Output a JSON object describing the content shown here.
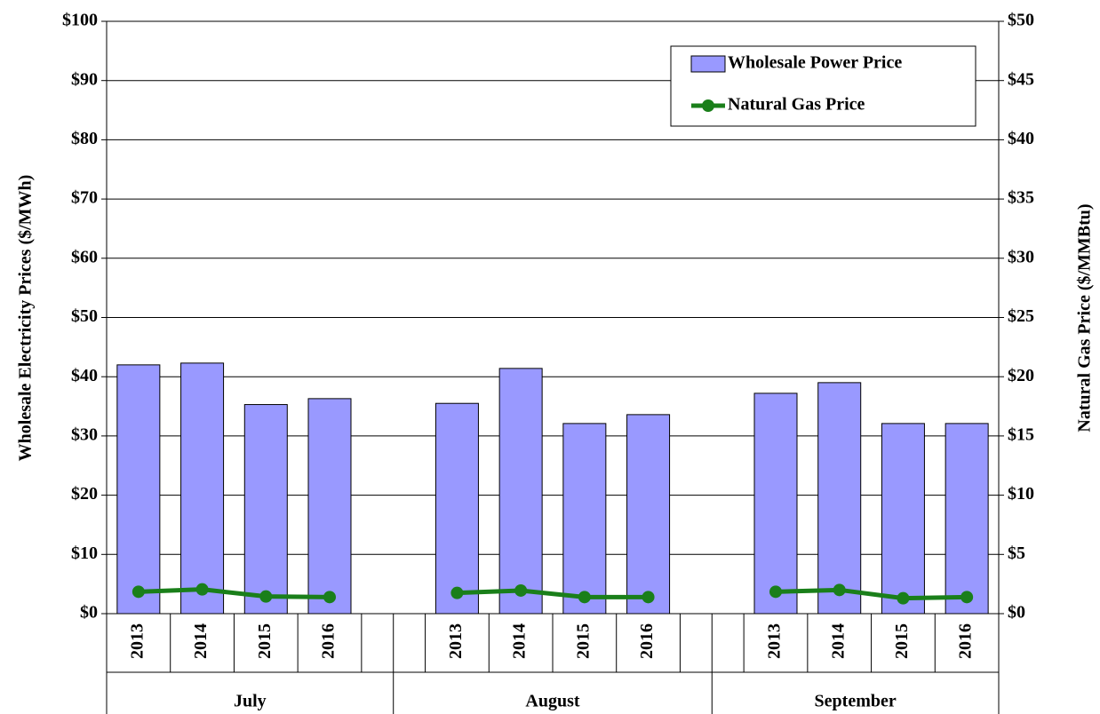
{
  "chart_data": {
    "type": "bar",
    "y_label": "Wholesale Electricity Prices ($/MWh)",
    "y2_label": "Natural Gas Price ($/MMBtu)",
    "categories": [
      "2013",
      "2014",
      "2015",
      "2016",
      null,
      "2013",
      "2014",
      "2015",
      "2016",
      null,
      "2013",
      "2014",
      "2015",
      "2016"
    ],
    "groups": [
      "July",
      "August",
      "September"
    ],
    "series": [
      {
        "name": "Wholesale Power Price",
        "type": "bar",
        "color": "#9999ff",
        "values": [
          42.0,
          42.3,
          35.3,
          36.3,
          null,
          35.5,
          41.4,
          32.1,
          33.6,
          null,
          37.2,
          39.0,
          32.1,
          32.1
        ]
      },
      {
        "name": "Natural Gas Price",
        "type": "line",
        "color": "#1a7f1a",
        "values": [
          3.7,
          4.1,
          2.9,
          2.8,
          null,
          3.5,
          3.9,
          2.8,
          2.8,
          null,
          3.7,
          4.0,
          2.6,
          2.8
        ]
      }
    ],
    "ylim": [
      0,
      100
    ],
    "yticks": [
      {
        "value": 0,
        "label": "$0"
      },
      {
        "value": 10,
        "label": "$10"
      },
      {
        "value": 20,
        "label": "$20"
      },
      {
        "value": 30,
        "label": "$30"
      },
      {
        "value": 40,
        "label": "$40"
      },
      {
        "value": 50,
        "label": "$50"
      },
      {
        "value": 60,
        "label": "$60"
      },
      {
        "value": 70,
        "label": "$70"
      },
      {
        "value": 80,
        "label": "$80"
      },
      {
        "value": 90,
        "label": "$90"
      },
      {
        "value": 100,
        "label": "$100"
      }
    ],
    "y2lim": [
      0,
      50
    ],
    "y2ticks": [
      {
        "value": 0,
        "label": "$0"
      },
      {
        "value": 5,
        "label": "$5"
      },
      {
        "value": 10,
        "label": "$10"
      },
      {
        "value": 15,
        "label": "$15"
      },
      {
        "value": 20,
        "label": "$20"
      },
      {
        "value": 25,
        "label": "$25"
      },
      {
        "value": 30,
        "label": "$30"
      },
      {
        "value": 35,
        "label": "$35"
      },
      {
        "value": 40,
        "label": "$40"
      },
      {
        "value": 45,
        "label": "$45"
      },
      {
        "value": 50,
        "label": "$50"
      }
    ],
    "grid": true,
    "legend": "top-right"
  }
}
